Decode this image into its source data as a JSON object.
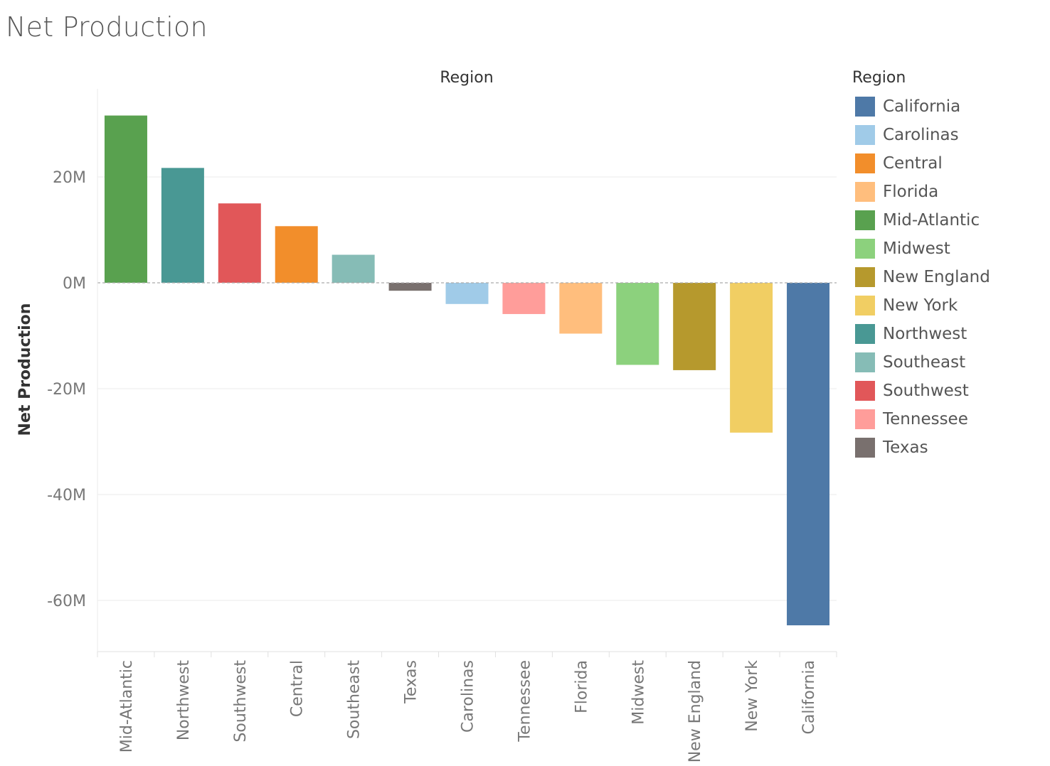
{
  "chart_data": {
    "type": "bar",
    "title": "Net Production",
    "xlabel": "Region",
    "ylabel": "Net Production",
    "ylim": [
      -69,
      36
    ],
    "yticks": [
      20,
      0,
      -20,
      -40,
      -60
    ],
    "ytick_labels": [
      "20M",
      "0M",
      "-20M",
      "-40M",
      "-60M"
    ],
    "grid": true,
    "legend_position": "right",
    "categories": [
      "Mid-Atlantic",
      "Northwest",
      "Southwest",
      "Central",
      "Southeast",
      "Texas",
      "Carolinas",
      "Tennessee",
      "Florida",
      "Midwest",
      "New England",
      "New York",
      "California"
    ],
    "values": [
      31.6,
      21.7,
      15.0,
      10.7,
      5.3,
      -1.5,
      -4.0,
      -5.9,
      -9.6,
      -15.5,
      -16.5,
      -28.3,
      -64.7
    ],
    "units": "M",
    "bar_colors": [
      "#59a14f",
      "#499894",
      "#e15759",
      "#f28e2b",
      "#86bcb6",
      "#79706e",
      "#a0cbe8",
      "#ff9d9a",
      "#ffbe7d",
      "#8cd17d",
      "#b6992d",
      "#f1ce63",
      "#4e79a7"
    ],
    "legend": {
      "title": "Region",
      "entries": [
        {
          "label": "California",
          "color": "#4e79a7"
        },
        {
          "label": "Carolinas",
          "color": "#a0cbe8"
        },
        {
          "label": "Central",
          "color": "#f28e2b"
        },
        {
          "label": "Florida",
          "color": "#ffbe7d"
        },
        {
          "label": "Mid-Atlantic",
          "color": "#59a14f"
        },
        {
          "label": "Midwest",
          "color": "#8cd17d"
        },
        {
          "label": "New England",
          "color": "#b6992d"
        },
        {
          "label": "New York",
          "color": "#f1ce63"
        },
        {
          "label": "Northwest",
          "color": "#499894"
        },
        {
          "label": "Southeast",
          "color": "#86bcb6"
        },
        {
          "label": "Southwest",
          "color": "#e15759"
        },
        {
          "label": "Tennessee",
          "color": "#ff9d9a"
        },
        {
          "label": "Texas",
          "color": "#79706e"
        }
      ]
    }
  }
}
